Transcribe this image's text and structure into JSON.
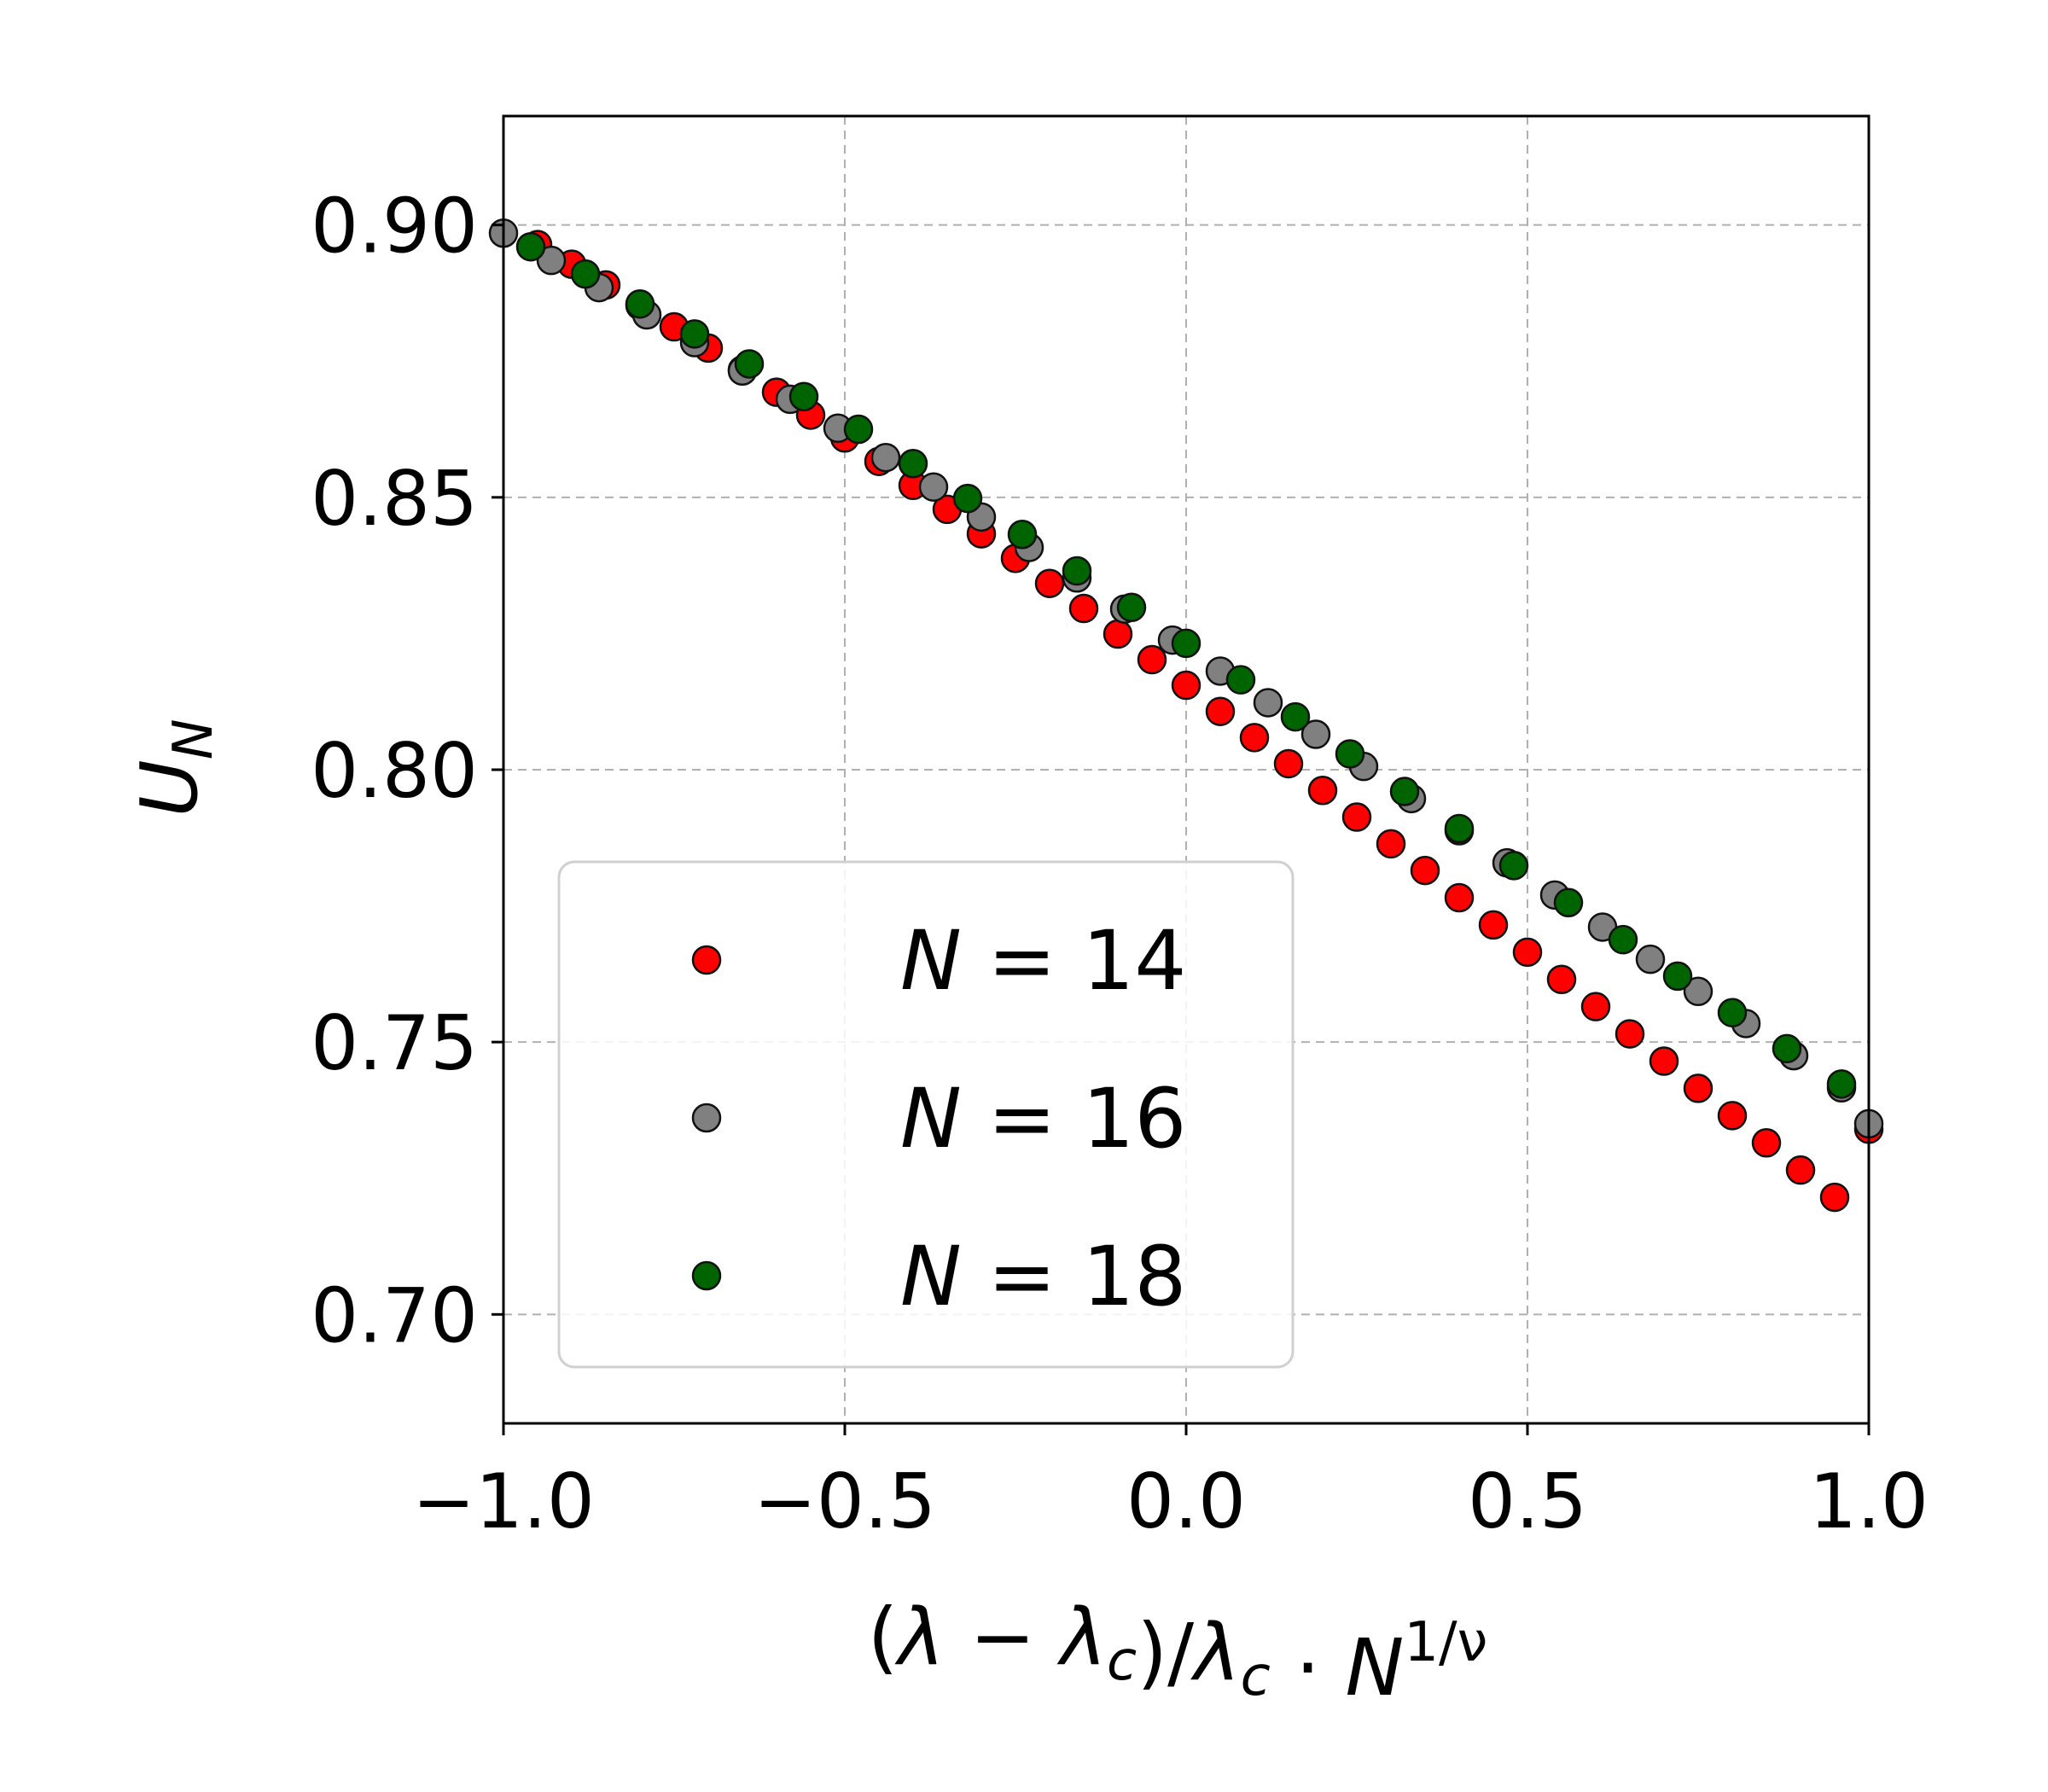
{
  "chart_data": {
    "type": "scatter",
    "xlabel": "(λ − λc)/λc · N^(1/ν)",
    "ylabel": "U_N",
    "xlim": [
      -1.0,
      1.0
    ],
    "ylim": [
      0.68,
      0.92
    ],
    "xticks": [
      -1.0,
      -0.5,
      0.0,
      0.5,
      1.0
    ],
    "xtick_labels": [
      "−1.0",
      "−0.5",
      "0.0",
      "0.5",
      "1.0"
    ],
    "yticks": [
      0.7,
      0.75,
      0.8,
      0.85,
      0.9
    ],
    "ytick_labels": [
      "0.70",
      "0.75",
      "0.80",
      "0.85",
      "0.90"
    ],
    "grid": true,
    "legend_position": "lower-left",
    "series": [
      {
        "name": "N = 14",
        "name_parts": [
          "N",
          "= 14"
        ],
        "color": "#ff0000",
        "x": [
          -0.95,
          -0.9,
          -0.85,
          -0.8,
          -0.75,
          -0.7,
          -0.65,
          -0.6,
          -0.55,
          -0.5,
          -0.45,
          -0.4,
          -0.35,
          -0.3,
          -0.25,
          -0.2,
          -0.15,
          -0.1,
          -0.05,
          0.0,
          0.05,
          0.1,
          0.15,
          0.2,
          0.25,
          0.3,
          0.35,
          0.4,
          0.45,
          0.5,
          0.55,
          0.6,
          0.65,
          0.7,
          0.75,
          0.8,
          0.85,
          0.9,
          0.95,
          1.0
        ],
        "y": [
          0.8964,
          0.8928,
          0.889,
          0.8852,
          0.8813,
          0.8774,
          0.8734,
          0.8693,
          0.8651,
          0.8609,
          0.8566,
          0.8522,
          0.8478,
          0.8433,
          0.8388,
          0.8342,
          0.8296,
          0.8249,
          0.8202,
          0.8155,
          0.8107,
          0.8059,
          0.8011,
          0.7962,
          0.7913,
          0.7864,
          0.7815,
          0.7765,
          0.7715,
          0.7665,
          0.7615,
          0.7565,
          0.7515,
          0.7465,
          0.7415,
          0.7365,
          0.7315,
          0.7265,
          0.7215,
          0.734
        ]
      },
      {
        "name": "N = 16",
        "name_parts": [
          "N",
          "= 16"
        ],
        "color": "#808080",
        "x": [
          -1.0,
          -0.93,
          -0.86,
          -0.79,
          -0.72,
          -0.65,
          -0.58,
          -0.51,
          -0.44,
          -0.37,
          -0.3,
          -0.23,
          -0.16,
          -0.09,
          -0.02,
          0.05,
          0.12,
          0.19,
          0.26,
          0.33,
          0.4,
          0.47,
          0.54,
          0.61,
          0.68,
          0.75,
          0.82,
          0.89,
          0.96,
          1.0
        ],
        "y": [
          0.8985,
          0.8935,
          0.8885,
          0.8835,
          0.8784,
          0.8732,
          0.868,
          0.8627,
          0.8573,
          0.8519,
          0.8464,
          0.8408,
          0.8352,
          0.8295,
          0.8238,
          0.8181,
          0.8123,
          0.8065,
          0.8006,
          0.7947,
          0.7888,
          0.7829,
          0.777,
          0.7711,
          0.7652,
          0.7593,
          0.7534,
          0.7475,
          0.7416,
          0.735
        ]
      },
      {
        "name": "N = 18",
        "name_parts": [
          "N",
          "= 18"
        ],
        "color": "#006400",
        "x": [
          -0.96,
          -0.88,
          -0.8,
          -0.72,
          -0.64,
          -0.56,
          -0.48,
          -0.4,
          -0.32,
          -0.24,
          -0.16,
          -0.08,
          0.0,
          0.08,
          0.16,
          0.24,
          0.32,
          0.4,
          0.48,
          0.56,
          0.64,
          0.72,
          0.8,
          0.88,
          0.96
        ],
        "y": [
          0.896,
          0.891,
          0.8855,
          0.88,
          0.8745,
          0.8685,
          0.8625,
          0.8562,
          0.8498,
          0.8432,
          0.8365,
          0.8298,
          0.8232,
          0.8165,
          0.8097,
          0.8029,
          0.796,
          0.7892,
          0.7824,
          0.7756,
          0.7688,
          0.7621,
          0.7554,
          0.7488,
          0.7423
        ]
      }
    ]
  }
}
